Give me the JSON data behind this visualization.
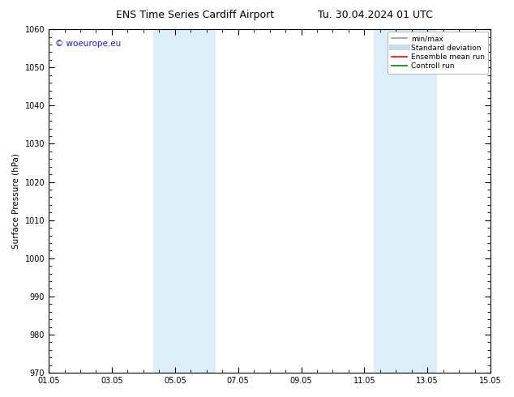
{
  "title_left": "ENS Time Series Cardiff Airport",
  "title_right": "Tu. 30.04.2024 01 UTC",
  "ylabel": "Surface Pressure (hPa)",
  "ylim": [
    970,
    1060
  ],
  "yticks": [
    970,
    980,
    990,
    1000,
    1010,
    1020,
    1030,
    1040,
    1050,
    1060
  ],
  "xlim_start": 0,
  "xlim_end": 14,
  "xtick_positions": [
    0,
    2,
    4,
    6,
    8,
    10,
    12,
    14
  ],
  "xtick_labels": [
    "01.05",
    "03.05",
    "05.05",
    "07.05",
    "09.05",
    "11.05",
    "13.05",
    "15.05"
  ],
  "shaded_bands": [
    {
      "x_start": 3.3,
      "x_end": 5.3
    },
    {
      "x_start": 10.3,
      "x_end": 12.3
    }
  ],
  "shaded_color": "#ddeef8",
  "background_color": "#ffffff",
  "watermark_text": "© woeurope.eu",
  "watermark_color": "#1a1aff",
  "legend_items": [
    {
      "label": "min/max",
      "color": "#999999",
      "linestyle": "-",
      "lw": 1.2
    },
    {
      "label": "Standard deviation",
      "color": "#c5ddef",
      "linestyle": "-",
      "lw": 5
    },
    {
      "label": "Ensemble mean run",
      "color": "#ff0000",
      "linestyle": "-",
      "lw": 1.2
    },
    {
      "label": "Controll run",
      "color": "#008000",
      "linestyle": "-",
      "lw": 1.2
    }
  ],
  "title_fontsize": 9,
  "tick_fontsize": 7,
  "ylabel_fontsize": 7.5,
  "watermark_fontsize": 7.5,
  "legend_fontsize": 6.5
}
